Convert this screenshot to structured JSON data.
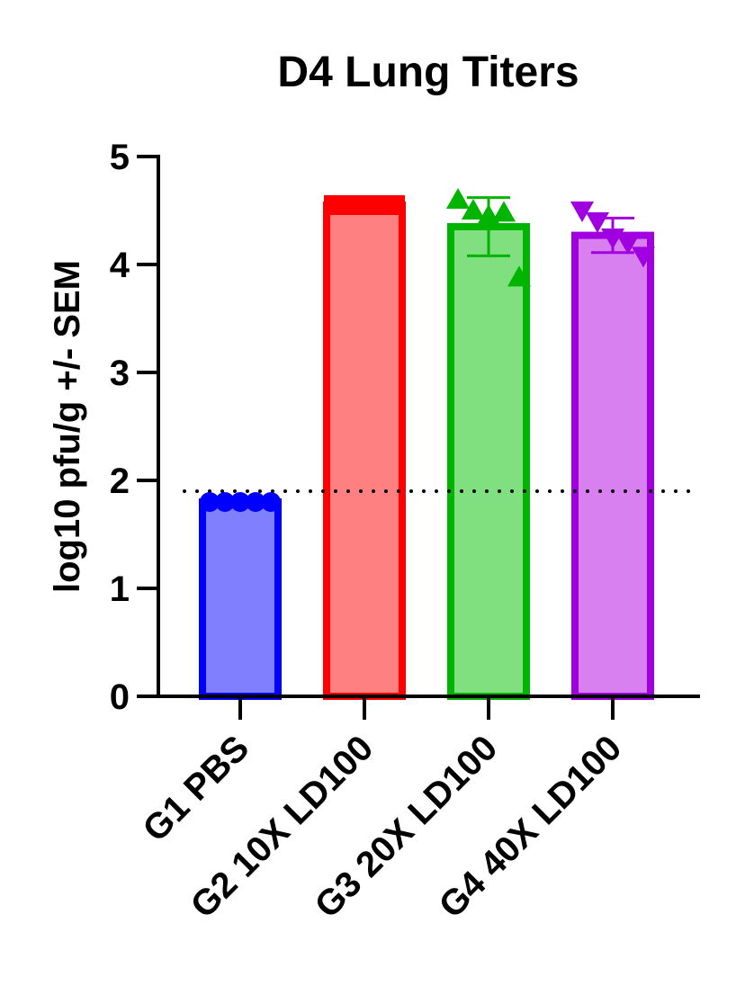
{
  "chart_data": {
    "type": "bar",
    "title": "D4 Lung Titers",
    "xlabel": "",
    "ylabel": "log10 pfu/g +/- SEM",
    "ylim": [
      0,
      5
    ],
    "yticks": [
      0,
      1,
      2,
      3,
      4,
      5
    ],
    "grid": false,
    "legend": "none",
    "reference_line": {
      "y": 1.9,
      "style": "dotted"
    },
    "categories": [
      "G1 PBS",
      "G2 10X LD100",
      "G3 20X LD100",
      "G4 40X LD100"
    ],
    "values": [
      1.8,
      4.55,
      4.35,
      4.27
    ],
    "sem": [
      0,
      0.02,
      0.27,
      0.16
    ],
    "bar_fill_colors": [
      "#8080ff",
      "#ff8080",
      "#80e080",
      "#d880f0"
    ],
    "bar_edge_colors": [
      "#0000ff",
      "#ff0000",
      "#00b400",
      "#a000e0"
    ],
    "marker_shapes": [
      "circle",
      "square",
      "triangle-up",
      "triangle-down"
    ],
    "points": [
      [
        1.8,
        1.8,
        1.8,
        1.8,
        1.8
      ],
      [
        4.55,
        4.55,
        4.55,
        4.55,
        4.55
      ],
      [
        4.6,
        4.5,
        4.45,
        4.48,
        3.88
      ],
      [
        4.5,
        4.4,
        4.25,
        4.2,
        4.08
      ]
    ]
  }
}
